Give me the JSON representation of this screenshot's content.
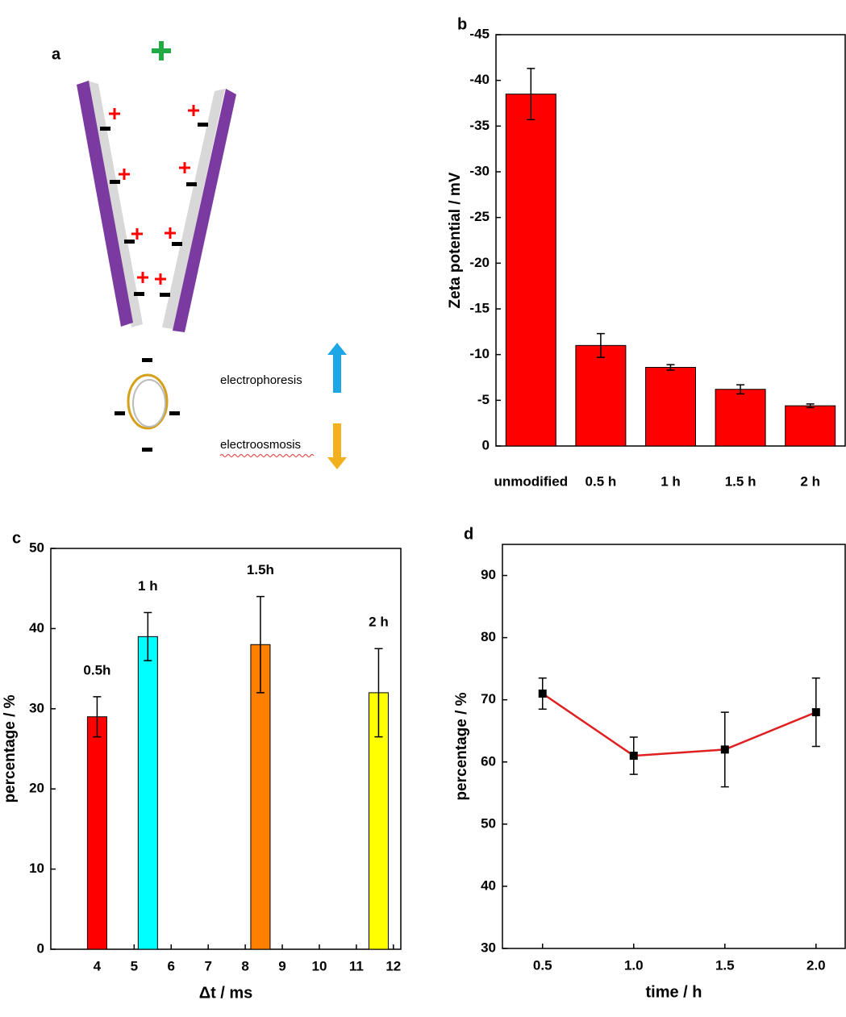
{
  "diagram": {
    "label": "a",
    "electrophoresis": "electrophoresis",
    "electroosmosis": "electroosmosis"
  },
  "chart_data": [
    {
      "type": "bar",
      "panel_label": "b",
      "y_label": "Zeta potential / mV",
      "categories": [
        "unmodified",
        "0.5 h",
        "1 h",
        "1.5 h",
        "2 h"
      ],
      "values": [
        -38.5,
        -11,
        -8.6,
        -6.2,
        -4.4
      ],
      "errors": [
        2.8,
        1.3,
        0.3,
        0.5,
        0.2
      ],
      "color": "#ff0000",
      "ylim": [
        0,
        -45
      ],
      "yticks": [
        0,
        -5,
        -10,
        -15,
        -20,
        -25,
        -30,
        -35,
        -40,
        -45
      ]
    },
    {
      "type": "bar",
      "panel_label": "c",
      "x_label": "Δt / ms",
      "y_label": "percentage / %",
      "x": [
        4,
        5.37,
        8.41,
        11.6
      ],
      "values": [
        29,
        39,
        38,
        32
      ],
      "errors": [
        2.5,
        3,
        6,
        5.5
      ],
      "labels": [
        "0.5h",
        "1 h",
        "1.5h",
        "2 h"
      ],
      "colors": [
        "#ff0000",
        "#00ffff",
        "#ff8000",
        "#ffff00"
      ],
      "xlim": [
        2.75,
        12.2
      ],
      "xticks": [
        4,
        5,
        6,
        7,
        8,
        9,
        10,
        11,
        12
      ],
      "ylim": [
        0,
        50
      ],
      "yticks": [
        0,
        10,
        20,
        30,
        40,
        50
      ]
    },
    {
      "type": "line",
      "panel_label": "d",
      "x_label": "time / h",
      "y_label": "percentage / %",
      "x": [
        0.5,
        1.0,
        1.5,
        2.0
      ],
      "values": [
        71,
        61,
        62,
        68
      ],
      "errors": [
        2.5,
        3,
        6,
        5.5
      ],
      "color": "#e02020",
      "marker_color": "#000000",
      "xlim": [
        0.28,
        2.16
      ],
      "xticks": [
        {
          "value": 0.5,
          "label": "0.5"
        },
        {
          "value": 1.0,
          "label": "1.0"
        },
        {
          "value": 1.5,
          "label": "1.5"
        },
        {
          "value": 2.0,
          "label": "2.0"
        }
      ],
      "ylim": [
        30,
        95
      ],
      "yticks": [
        30,
        40,
        50,
        60,
        70,
        80,
        90
      ]
    }
  ]
}
